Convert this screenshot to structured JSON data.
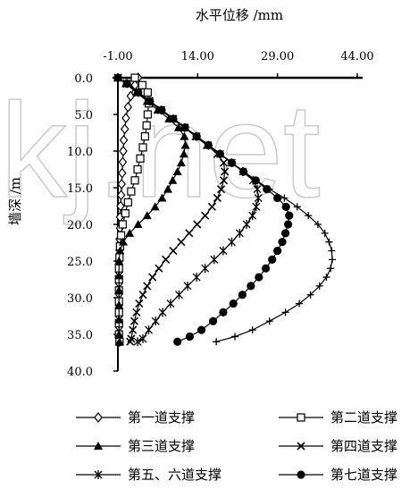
{
  "watermark": "kj.net",
  "chart_data": {
    "type": "line",
    "title": "",
    "xlabel": "水平位移 /mm",
    "ylabel": "墙深 /m",
    "x_axis_position": "top",
    "y_inverted": true,
    "xlim": [
      -1.0,
      44.0
    ],
    "ylim": [
      0.0,
      40.0
    ],
    "x_ticks": [
      -1.0,
      14.0,
      29.0,
      44.0
    ],
    "x_tick_labels": [
      "-1.00",
      "14.00",
      "29.00",
      "44.00"
    ],
    "y_ticks": [
      0,
      5,
      10,
      15,
      20,
      25,
      30,
      35,
      40
    ],
    "y_tick_labels": [
      "0.0",
      "5.0",
      "10.0",
      "15.0",
      "20.0",
      "25.0",
      "30.0",
      "35.0",
      "40.0"
    ],
    "grid": false,
    "legend_position": "bottom",
    "series": [
      {
        "name": "第一道支撑",
        "marker": "diamond-open",
        "points": [
          [
            2.8,
            0
          ],
          [
            2.2,
            1
          ],
          [
            1.4,
            2.5
          ],
          [
            0.9,
            4
          ],
          [
            0.5,
            5.5
          ],
          [
            0.3,
            7
          ],
          [
            0.1,
            8.5
          ],
          [
            0,
            10
          ],
          [
            -0.1,
            11.5
          ],
          [
            -0.2,
            13
          ],
          [
            -0.3,
            14.5
          ],
          [
            -0.4,
            16
          ],
          [
            -0.5,
            17.5
          ],
          [
            -0.6,
            19
          ],
          [
            -0.6,
            20.5
          ],
          [
            -0.7,
            22
          ],
          [
            -0.7,
            23.5
          ],
          [
            -0.8,
            25
          ],
          [
            -0.8,
            26.5
          ],
          [
            -0.8,
            28
          ],
          [
            -0.8,
            29.5
          ],
          [
            -0.8,
            31
          ],
          [
            -0.8,
            32.5
          ],
          [
            -0.8,
            34
          ],
          [
            -0.8,
            35.5
          ],
          [
            -0.7,
            36
          ]
        ]
      },
      {
        "name": "第二道支撑",
        "marker": "square-open",
        "points": [
          [
            2.2,
            0
          ],
          [
            3.6,
            1
          ],
          [
            4.6,
            2
          ],
          [
            4.8,
            3.5
          ],
          [
            4.6,
            5
          ],
          [
            4.4,
            6.5
          ],
          [
            4.1,
            8
          ],
          [
            3.7,
            9.5
          ],
          [
            3.2,
            11
          ],
          [
            2.7,
            12.5
          ],
          [
            2.2,
            14
          ],
          [
            1.5,
            15.5
          ],
          [
            0.9,
            17
          ],
          [
            0.4,
            18.5
          ],
          [
            -0.1,
            20
          ],
          [
            -0.4,
            21.5
          ],
          [
            -0.6,
            23
          ],
          [
            -0.7,
            24.5
          ],
          [
            -0.8,
            26
          ],
          [
            -0.8,
            27.5
          ],
          [
            -0.8,
            29
          ],
          [
            -0.8,
            30.5
          ],
          [
            -0.8,
            32
          ],
          [
            -0.8,
            33.5
          ],
          [
            -0.8,
            35
          ],
          [
            -0.7,
            36
          ]
        ]
      },
      {
        "name": "第三道支撑",
        "marker": "triangle-filled",
        "points": [
          [
            -1,
            0
          ],
          [
            0.5,
            0.8
          ],
          [
            2.5,
            2
          ],
          [
            4.5,
            3.2
          ],
          [
            6.5,
            4.4
          ],
          [
            8.6,
            5.6
          ],
          [
            10.4,
            6.8
          ],
          [
            11.5,
            8
          ],
          [
            11.7,
            9.2
          ],
          [
            11.4,
            10.4
          ],
          [
            10.9,
            11.6
          ],
          [
            10.2,
            12.8
          ],
          [
            9.3,
            14
          ],
          [
            8.4,
            15.2
          ],
          [
            7.3,
            16.4
          ],
          [
            6.0,
            17.6
          ],
          [
            4.5,
            18.8
          ],
          [
            2.8,
            20
          ],
          [
            1.2,
            21.2
          ],
          [
            0,
            22.4
          ],
          [
            -0.6,
            23.6
          ],
          [
            -0.8,
            25
          ],
          [
            -0.8,
            27
          ],
          [
            -0.8,
            29
          ],
          [
            -0.8,
            31
          ],
          [
            -0.8,
            33
          ],
          [
            -0.8,
            35
          ],
          [
            -0.7,
            36
          ]
        ]
      },
      {
        "name": "第四道支撑",
        "marker": "x",
        "points": [
          [
            -1,
            0
          ],
          [
            0.7,
            0.8
          ],
          [
            2.7,
            2
          ],
          [
            4.9,
            3.2
          ],
          [
            7.0,
            4.4
          ],
          [
            9.3,
            5.6
          ],
          [
            11.5,
            6.8
          ],
          [
            13.6,
            8
          ],
          [
            15.7,
            9.2
          ],
          [
            17.7,
            10.4
          ],
          [
            18.9,
            11.6
          ],
          [
            19.1,
            12.8
          ],
          [
            18.9,
            14
          ],
          [
            18.4,
            15.2
          ],
          [
            17.7,
            16.4
          ],
          [
            16.7,
            17.6
          ],
          [
            15.4,
            18.8
          ],
          [
            13.9,
            20
          ],
          [
            12.4,
            21.2
          ],
          [
            10.9,
            22.4
          ],
          [
            9.4,
            23.6
          ],
          [
            8.0,
            24.8
          ],
          [
            6.7,
            26
          ],
          [
            5.5,
            27.2
          ],
          [
            4.5,
            28.4
          ],
          [
            3.7,
            29.6
          ],
          [
            3.0,
            30.8
          ],
          [
            2.5,
            32
          ],
          [
            2.1,
            33.2
          ],
          [
            1.8,
            34.4
          ],
          [
            1.5,
            35.6
          ],
          [
            1.3,
            36
          ]
        ]
      },
      {
        "name": "第五、六道支撑",
        "marker": "asterisk",
        "points": [
          [
            -1,
            0
          ],
          [
            0.7,
            0.8
          ],
          [
            2.9,
            2
          ],
          [
            5.0,
            3.2
          ],
          [
            7.2,
            4.4
          ],
          [
            9.4,
            5.6
          ],
          [
            11.6,
            6.8
          ],
          [
            13.8,
            8
          ],
          [
            16.0,
            9.2
          ],
          [
            18.2,
            10.4
          ],
          [
            20.4,
            11.6
          ],
          [
            22.5,
            12.8
          ],
          [
            24.4,
            14
          ],
          [
            25.2,
            15.2
          ],
          [
            25.4,
            16.4
          ],
          [
            25.0,
            17.6
          ],
          [
            24.3,
            18.8
          ],
          [
            23.2,
            20
          ],
          [
            21.9,
            21.2
          ],
          [
            20.4,
            22.4
          ],
          [
            18.8,
            23.6
          ],
          [
            17.1,
            24.8
          ],
          [
            15.4,
            26
          ],
          [
            13.8,
            27.2
          ],
          [
            12.1,
            28.4
          ],
          [
            10.5,
            29.6
          ],
          [
            8.9,
            30.8
          ],
          [
            7.4,
            32
          ],
          [
            6.1,
            33.2
          ],
          [
            4.8,
            34.4
          ],
          [
            3.7,
            35.6
          ],
          [
            2.7,
            36
          ]
        ]
      },
      {
        "name": "第七道支撑",
        "marker": "circle-filled",
        "points": [
          [
            -1,
            0
          ],
          [
            0.7,
            0.8
          ],
          [
            2.8,
            2
          ],
          [
            5.0,
            3.2
          ],
          [
            7.2,
            4.4
          ],
          [
            9.4,
            5.6
          ],
          [
            11.6,
            6.8
          ],
          [
            13.8,
            8
          ],
          [
            16.0,
            9.2
          ],
          [
            18.2,
            10.4
          ],
          [
            20.4,
            11.6
          ],
          [
            22.6,
            12.8
          ],
          [
            24.9,
            14
          ],
          [
            27.0,
            15.2
          ],
          [
            29.0,
            16.4
          ],
          [
            30.6,
            17.6
          ],
          [
            31.2,
            18.8
          ],
          [
            31.0,
            20
          ],
          [
            30.5,
            21.2
          ],
          [
            29.9,
            22.4
          ],
          [
            29.0,
            23.6
          ],
          [
            28.0,
            24.8
          ],
          [
            26.8,
            26
          ],
          [
            25.5,
            27.2
          ],
          [
            24.0,
            28.4
          ],
          [
            22.4,
            29.6
          ],
          [
            20.7,
            30.8
          ],
          [
            18.8,
            32
          ],
          [
            16.9,
            33.2
          ],
          [
            14.7,
            34.4
          ],
          [
            12.5,
            35.3
          ],
          [
            10.2,
            36
          ]
        ]
      },
      {
        "name": "",
        "marker": "plus",
        "points": [
          [
            -1,
            0
          ],
          [
            0.8,
            0.8
          ],
          [
            2.9,
            2
          ],
          [
            5.1,
            3.2
          ],
          [
            7.3,
            4.4
          ],
          [
            9.5,
            5.6
          ],
          [
            11.7,
            6.8
          ],
          [
            13.9,
            8
          ],
          [
            16.1,
            9.2
          ],
          [
            18.3,
            10.4
          ],
          [
            20.5,
            11.6
          ],
          [
            22.7,
            12.8
          ],
          [
            25.0,
            14
          ],
          [
            27.5,
            15.2
          ],
          [
            30.3,
            16.4
          ],
          [
            32.7,
            17.6
          ],
          [
            34.8,
            18.8
          ],
          [
            36.6,
            20
          ],
          [
            37.9,
            21.2
          ],
          [
            38.7,
            22.4
          ],
          [
            39.2,
            23.6
          ],
          [
            39.3,
            24.8
          ],
          [
            39.0,
            26
          ],
          [
            38.2,
            27.2
          ],
          [
            36.9,
            28.4
          ],
          [
            35.2,
            29.6
          ],
          [
            33.1,
            30.8
          ],
          [
            30.5,
            32
          ],
          [
            27.5,
            33.2
          ],
          [
            24.3,
            34.4
          ],
          [
            21.0,
            35.3
          ],
          [
            17.5,
            36
          ]
        ]
      }
    ]
  }
}
